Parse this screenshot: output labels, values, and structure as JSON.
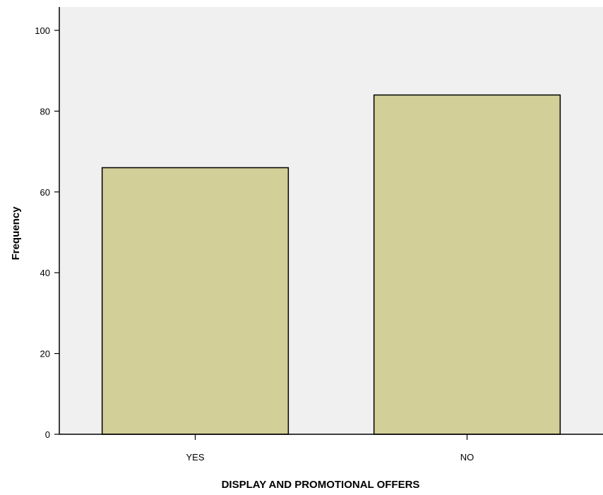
{
  "chart_data": {
    "type": "bar",
    "categories": [
      "YES",
      "NO"
    ],
    "values": [
      66,
      84
    ],
    "title": "",
    "xlabel": "DISPLAY AND PROMOTIONAL OFFERS",
    "ylabel": "Frequency",
    "ylim": [
      0,
      100
    ],
    "yticks": [
      0,
      20,
      40,
      60,
      80,
      100
    ],
    "grid": false,
    "legend": "none",
    "colors": {
      "bar_fill": "#d3cf98",
      "bar_stroke": "#000000",
      "plot_background": "#f0f0f0",
      "axis": "#000000"
    }
  }
}
